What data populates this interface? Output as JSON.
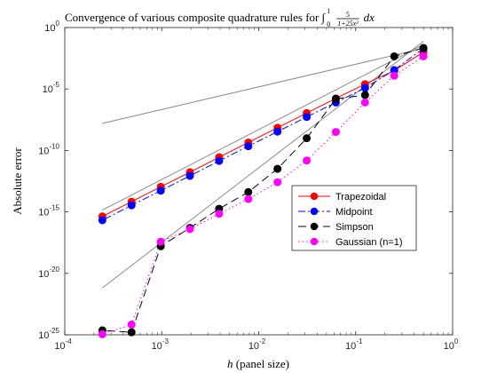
{
  "chart_data": {
    "type": "line",
    "title": {
      "prefix": "Convergence of various composite quadrature rules for ∫",
      "lower": "0",
      "upper": "1",
      "numerator": "5",
      "denominator": "1+25x²",
      "suffix": "dx"
    },
    "xlabel": {
      "var": "h",
      "rest": "(panel size)"
    },
    "ylabel": "Absolute error",
    "xscale": "log",
    "yscale": "log",
    "xlim": [
      0.0001,
      1
    ],
    "ylim": [
      1e-25,
      1
    ],
    "xticks": [
      {
        "value": 0.0001,
        "base": "10",
        "exp": "-4"
      },
      {
        "value": 0.001,
        "base": "10",
        "exp": "-3"
      },
      {
        "value": 0.01,
        "base": "10",
        "exp": "-2"
      },
      {
        "value": 0.1,
        "base": "10",
        "exp": "-1"
      },
      {
        "value": 1,
        "base": "10",
        "exp": "0"
      }
    ],
    "yticks": [
      {
        "value": 1,
        "base": "10",
        "exp": "0"
      },
      {
        "value": 1e-05,
        "base": "10",
        "exp": "-5"
      },
      {
        "value": 1e-10,
        "base": "10",
        "exp": "-10"
      },
      {
        "value": 1e-15,
        "base": "10",
        "exp": "-15"
      },
      {
        "value": 1e-20,
        "base": "10",
        "exp": "-20"
      },
      {
        "value": 1e-25,
        "base": "10",
        "exp": "-25"
      }
    ],
    "grid": false,
    "legend_position": "lower-right",
    "x": [
      0.5,
      0.25,
      0.125,
      0.0625,
      0.03125,
      0.015625,
      0.0078125,
      0.00390625,
      0.001953125,
      0.0009765625,
      0.00048828125,
      0.000244140625
    ],
    "series": [
      {
        "name": "Trapezoidal",
        "color": "#ff0000",
        "marker_color": "#ff0000",
        "dash": "",
        "values": [
          0.01,
          0.00031,
          2.5e-05,
          1.7e-06,
          1.1e-07,
          7e-09,
          4.4e-10,
          2.8e-11,
          1.7e-12,
          1.1e-13,
          6.8e-15,
          4.3e-16
        ]
      },
      {
        "name": "Midpoint",
        "color": "#0000ff",
        "marker_color": "#0000ff",
        "dash": "8,3,2,3",
        "values": [
          0.02,
          0.00035,
          1.2e-05,
          8e-07,
          5.3e-08,
          3.4e-09,
          2.2e-10,
          1.4e-11,
          8.5e-13,
          5.3e-14,
          3.4e-15,
          2.1e-16
        ]
      },
      {
        "name": "Simpson",
        "color": "#000000",
        "marker_color": "#000000",
        "dash": "9,5",
        "values": [
          0.022,
          0.0045,
          3.2e-06,
          1.6e-06,
          9.8e-10,
          3.2e-12,
          4.1e-14,
          1.8e-15,
          5e-17,
          1.6e-18,
          1.6e-25,
          2.3e-25
        ]
      },
      {
        "name": "Gaussian (n=1)",
        "color": "#ff00ff",
        "marker_color": "#ff00ff",
        "dash": "1.5,3",
        "values": [
          0.0045,
          0.00012,
          8e-07,
          3.2e-09,
          1.5e-11,
          2.6e-13,
          1.1e-14,
          7e-16,
          4e-17,
          3.8e-18,
          6.8e-25,
          1.1e-25
        ]
      }
    ],
    "reference_lines": {
      "color": "#8c8c8c",
      "lines": [
        {
          "x": [
            0.000244140625,
            0.5
          ],
          "y": [
            1.6e-08,
            0.02
          ]
        },
        {
          "x": [
            0.000244140625,
            0.5
          ],
          "y": [
            1.4e-15,
            0.04
          ]
        },
        {
          "x": [
            0.000244140625,
            0.5
          ],
          "y": [
            6.6e-22,
            0.075
          ]
        }
      ]
    }
  }
}
